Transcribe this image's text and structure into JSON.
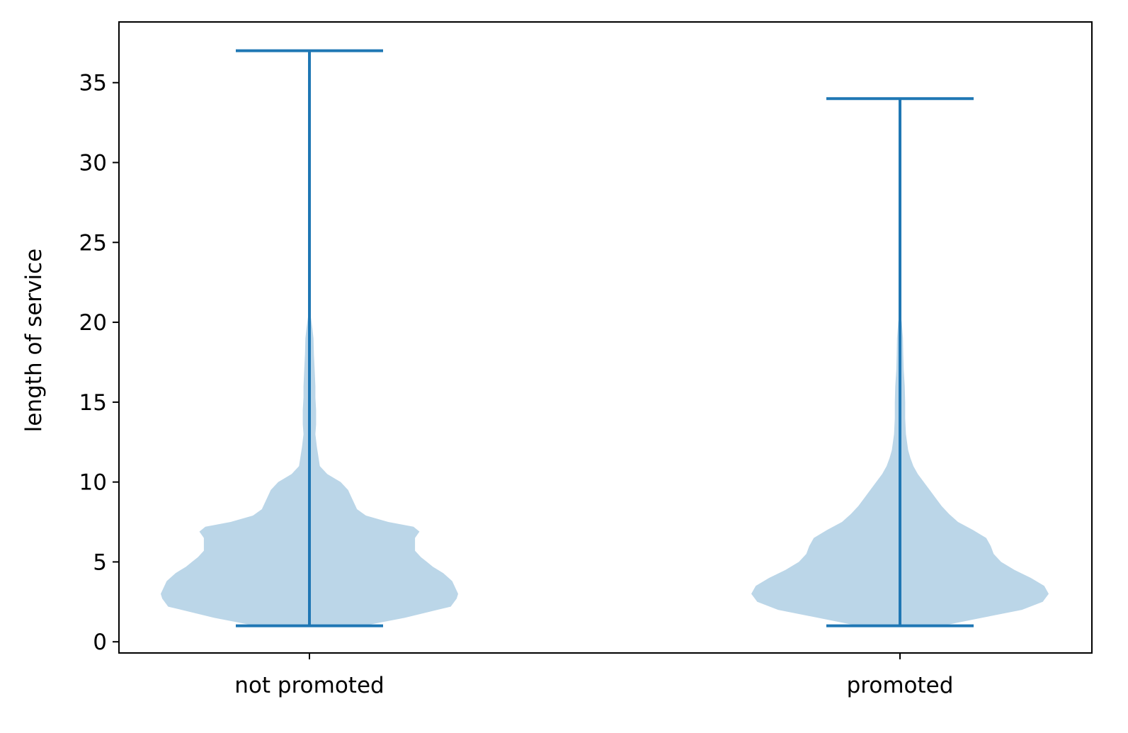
{
  "chart_data": {
    "type": "violin",
    "title": "",
    "xlabel": "",
    "ylabel": "length of service",
    "ylim": [
      -0.7,
      38.8
    ],
    "yticks": [
      0,
      5,
      10,
      15,
      20,
      25,
      30,
      35
    ],
    "categories": [
      "not promoted",
      "promoted"
    ],
    "grid": false,
    "colors": {
      "body": "#1f77b4",
      "body_opacity": 0.3,
      "lines": "#1f77b4"
    },
    "violins": [
      {
        "category": "not promoted",
        "min": 1,
        "max": 37,
        "density": [
          [
            1,
            0.36
          ],
          [
            1.5,
            0.64
          ],
          [
            2,
            0.86
          ],
          [
            2.2,
            0.95
          ],
          [
            2.7,
            0.99
          ],
          [
            3.0,
            1.0
          ],
          [
            3.4,
            0.98
          ],
          [
            3.8,
            0.96
          ],
          [
            4.3,
            0.9
          ],
          [
            4.7,
            0.83
          ],
          [
            5.0,
            0.79
          ],
          [
            5.3,
            0.75
          ],
          [
            5.7,
            0.71
          ],
          [
            6.0,
            0.71
          ],
          [
            6.5,
            0.71
          ],
          [
            6.9,
            0.74
          ],
          [
            7.2,
            0.7
          ],
          [
            7.5,
            0.53
          ],
          [
            7.9,
            0.38
          ],
          [
            8.3,
            0.32
          ],
          [
            8.9,
            0.29
          ],
          [
            9.5,
            0.26
          ],
          [
            10.0,
            0.21
          ],
          [
            10.5,
            0.12
          ],
          [
            11.0,
            0.07
          ],
          [
            11.6,
            0.06
          ],
          [
            12.2,
            0.05
          ],
          [
            13.0,
            0.04
          ],
          [
            13.6,
            0.045
          ],
          [
            14.5,
            0.045
          ],
          [
            15.3,
            0.04
          ],
          [
            16.0,
            0.04
          ],
          [
            17.0,
            0.035
          ],
          [
            18.0,
            0.03
          ],
          [
            19.0,
            0.027
          ],
          [
            19.6,
            0.02
          ],
          [
            20.3,
            0.01
          ],
          [
            20.8,
            0.0
          ]
        ]
      },
      {
        "category": "promoted",
        "min": 1,
        "max": 34,
        "density": [
          [
            1,
            0.28
          ],
          [
            1.5,
            0.55
          ],
          [
            2.0,
            0.82
          ],
          [
            2.5,
            0.96
          ],
          [
            3.0,
            1.0
          ],
          [
            3.5,
            0.97
          ],
          [
            4.0,
            0.88
          ],
          [
            4.5,
            0.77
          ],
          [
            5.0,
            0.68
          ],
          [
            5.5,
            0.63
          ],
          [
            6.0,
            0.61
          ],
          [
            6.5,
            0.58
          ],
          [
            7.0,
            0.49
          ],
          [
            7.5,
            0.39
          ],
          [
            8.0,
            0.33
          ],
          [
            8.5,
            0.28
          ],
          [
            9.0,
            0.24
          ],
          [
            9.5,
            0.2
          ],
          [
            10.0,
            0.16
          ],
          [
            10.5,
            0.12
          ],
          [
            11.0,
            0.09
          ],
          [
            11.5,
            0.07
          ],
          [
            12.0,
            0.055
          ],
          [
            13.0,
            0.04
          ],
          [
            14.0,
            0.035
          ],
          [
            15.0,
            0.035
          ],
          [
            16.0,
            0.032
          ],
          [
            17.0,
            0.025
          ],
          [
            18.0,
            0.022
          ],
          [
            19.0,
            0.02
          ],
          [
            20.0,
            0.012
          ],
          [
            20.7,
            0.0
          ]
        ]
      }
    ]
  }
}
